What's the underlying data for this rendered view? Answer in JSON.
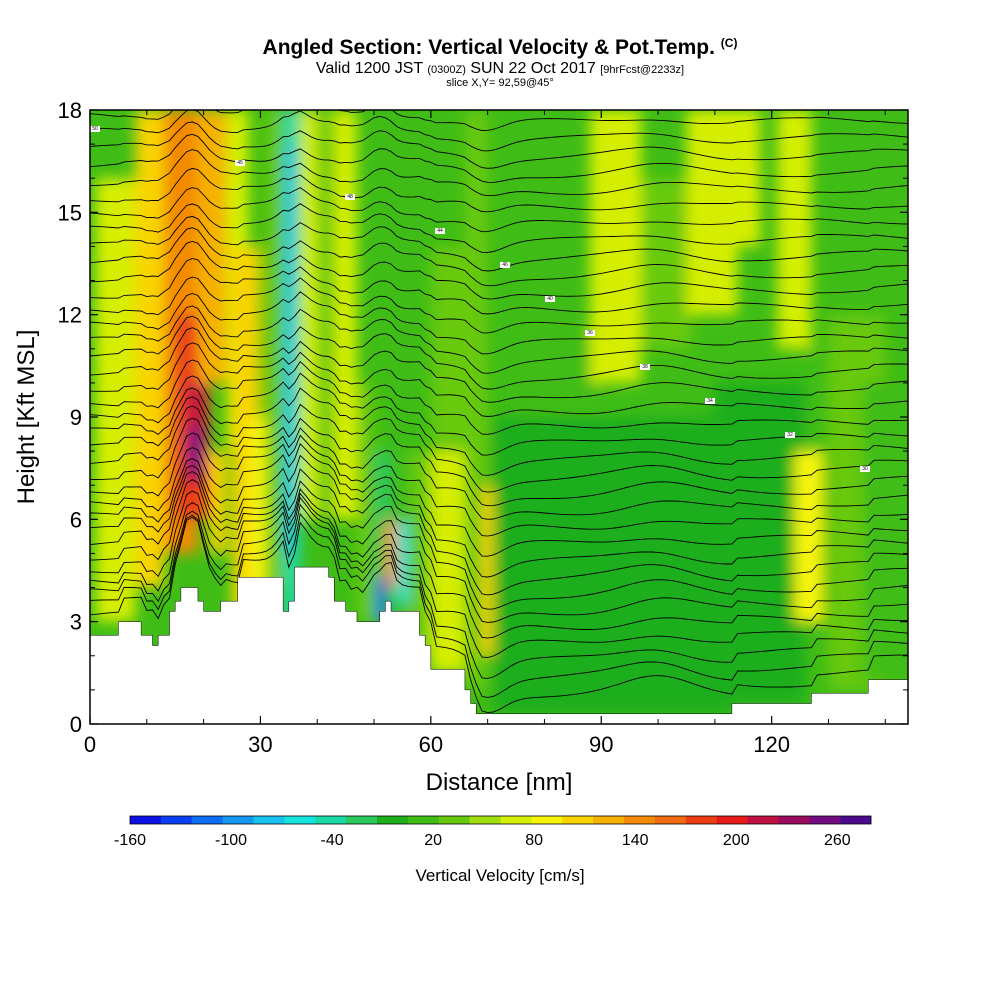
{
  "title": {
    "main": "Angled Section: Vertical Velocity & Pot.Temp.",
    "unit": "(C)",
    "valid_prefix": "Valid 1200 JST",
    "valid_utc": "(0300Z)",
    "valid_date": "SUN 22 Oct 2017",
    "forecast": "[9hrFcst@2233z]",
    "slice": "slice X,Y= 92,59@45°"
  },
  "chart_data": {
    "type": "heatmap",
    "xlabel": "Distance [nm]",
    "ylabel": "Height [Kft MSL]",
    "xlim": [
      0,
      144
    ],
    "ylim": [
      0,
      18
    ],
    "x_ticks": [
      0,
      30,
      60,
      90,
      120
    ],
    "y_ticks": [
      0,
      3,
      6,
      9,
      12,
      15,
      18
    ],
    "terrain_kft": [
      [
        0,
        2.6
      ],
      [
        3,
        2.6
      ],
      [
        5,
        3.0
      ],
      [
        8,
        3.0
      ],
      [
        9,
        2.6
      ],
      [
        10,
        2.6
      ],
      [
        11,
        2.3
      ],
      [
        12,
        2.6
      ],
      [
        13,
        2.6
      ],
      [
        14,
        3.3
      ],
      [
        15,
        3.6
      ],
      [
        16,
        4.0
      ],
      [
        18,
        4.0
      ],
      [
        19,
        3.6
      ],
      [
        20,
        3.3
      ],
      [
        22,
        3.3
      ],
      [
        23,
        3.6
      ],
      [
        25,
        3.6
      ],
      [
        26,
        4.3
      ],
      [
        33,
        4.3
      ],
      [
        34,
        3.3
      ],
      [
        35,
        3.6
      ],
      [
        36,
        4.6
      ],
      [
        40,
        4.6
      ],
      [
        42,
        4.3
      ],
      [
        43,
        3.6
      ],
      [
        45,
        3.3
      ],
      [
        47,
        3.0
      ],
      [
        50,
        3.0
      ],
      [
        51,
        3.3
      ],
      [
        52,
        3.6
      ],
      [
        53,
        3.3
      ],
      [
        57,
        3.3
      ],
      [
        58,
        2.6
      ],
      [
        59,
        2.3
      ],
      [
        60,
        1.6
      ],
      [
        65,
        1.6
      ],
      [
        66,
        1.0
      ],
      [
        67,
        0.6
      ],
      [
        68,
        0.3
      ],
      [
        80,
        0.3
      ],
      [
        90,
        0.3
      ],
      [
        100,
        0.3
      ],
      [
        110,
        0.3
      ],
      [
        113,
        0.6
      ],
      [
        120,
        0.6
      ],
      [
        125,
        0.6
      ],
      [
        127,
        0.9
      ],
      [
        136,
        0.9
      ],
      [
        137,
        1.3
      ],
      [
        144,
        1.3
      ]
    ],
    "velocity_cells": [
      {
        "x": [
          1,
          8
        ],
        "y": [
          3,
          16
        ],
        "value": 60
      },
      {
        "x": [
          8,
          13
        ],
        "y": [
          4,
          18
        ],
        "value": 110
      },
      {
        "x": [
          13,
          19
        ],
        "y": [
          5,
          18
        ],
        "value": 150
      },
      {
        "x": [
          15,
          21
        ],
        "y": [
          6,
          12
        ],
        "value": 180
      },
      {
        "x": [
          17,
          20
        ],
        "y": [
          7,
          10
        ],
        "value": 220
      },
      {
        "x": [
          17.5,
          19.5
        ],
        "y": [
          7.3,
          8.7
        ],
        "value": 270
      },
      {
        "x": [
          19,
          24
        ],
        "y": [
          10,
          18
        ],
        "value": 120
      },
      {
        "x": [
          24,
          28
        ],
        "y": [
          8,
          18
        ],
        "value": 70
      },
      {
        "x": [
          21,
          24
        ],
        "y": [
          5,
          8
        ],
        "value": 110
      },
      {
        "x": [
          25,
          30
        ],
        "y": [
          3,
          14
        ],
        "value": 100
      },
      {
        "x": [
          28,
          31
        ],
        "y": [
          4,
          9
        ],
        "value": 80
      },
      {
        "x": [
          31,
          34
        ],
        "y": [
          4,
          18
        ],
        "value": 40
      },
      {
        "x": [
          34,
          37
        ],
        "y": [
          3,
          18
        ],
        "value": -40
      },
      {
        "x": [
          34.5,
          36
        ],
        "y": [
          5,
          17
        ],
        "value": -70
      },
      {
        "x": [
          37,
          40
        ],
        "y": [
          6,
          18
        ],
        "value": 70
      },
      {
        "x": [
          40,
          43
        ],
        "y": [
          6,
          18
        ],
        "value": 30
      },
      {
        "x": [
          43,
          47
        ],
        "y": [
          6,
          18
        ],
        "value": 60
      },
      {
        "x": [
          47,
          50
        ],
        "y": [
          3,
          10
        ],
        "value": 40
      },
      {
        "x": [
          50,
          53
        ],
        "y": [
          3,
          8
        ],
        "value": -30
      },
      {
        "x": [
          50.5,
          52
        ],
        "y": [
          3,
          4.3
        ],
        "value": -130
      },
      {
        "x": [
          52,
          54
        ],
        "y": [
          4,
          6
        ],
        "value": 140
      },
      {
        "x": [
          54,
          56
        ],
        "y": [
          3.5,
          6
        ],
        "value": -60
      },
      {
        "x": [
          56,
          60
        ],
        "y": [
          2,
          8
        ],
        "value": 30
      },
      {
        "x": [
          60,
          66
        ],
        "y": [
          1.5,
          8
        ],
        "value": 60
      },
      {
        "x": [
          60,
          66
        ],
        "y": [
          8,
          14
        ],
        "value": 40
      },
      {
        "x": [
          66,
          70
        ],
        "y": [
          1,
          18
        ],
        "value": 40
      },
      {
        "x": [
          69,
          73
        ],
        "y": [
          2,
          7
        ],
        "value": 100
      },
      {
        "x": [
          71,
          80
        ],
        "y": [
          0.3,
          9
        ],
        "value": 0
      },
      {
        "x": [
          80,
          113
        ],
        "y": [
          0.3,
          9
        ],
        "value": 0
      },
      {
        "x": [
          110,
          126
        ],
        "y": [
          0.6,
          10
        ],
        "value": 0
      },
      {
        "x": [
          76,
          90
        ],
        "y": [
          9,
          11.5
        ],
        "value": 20
      },
      {
        "x": [
          88,
          97
        ],
        "y": [
          10,
          18
        ],
        "value": 60
      },
      {
        "x": [
          97,
          106
        ],
        "y": [
          11,
          16
        ],
        "value": 40
      },
      {
        "x": [
          105,
          114
        ],
        "y": [
          12,
          18
        ],
        "value": 70
      },
      {
        "x": [
          114,
          118
        ],
        "y": [
          14,
          18
        ],
        "value": 60
      },
      {
        "x": [
          121,
          127
        ],
        "y": [
          11,
          18
        ],
        "value": 70
      },
      {
        "x": [
          126,
          130
        ],
        "y": [
          2,
          11
        ],
        "value": 20
      },
      {
        "x": [
          130,
          140
        ],
        "y": [
          1,
          12
        ],
        "value": 40
      },
      {
        "x": [
          136,
          144
        ],
        "y": [
          1.3,
          10
        ],
        "value": 20
      },
      {
        "x": [
          124,
          129
        ],
        "y": [
          3,
          8
        ],
        "value": 80
      }
    ],
    "colorbar": {
      "label": "Vertical Velocity [cm/s]",
      "ticks": [
        "-160",
        "-100",
        "-40",
        "20",
        "80",
        "140",
        "200",
        "260"
      ],
      "levels": [
        -160,
        280
      ],
      "colors": [
        "#0b12e6",
        "#0a3ef2",
        "#0b6cf5",
        "#1598f3",
        "#17c1f0",
        "#15e3de",
        "#1ad9a6",
        "#2bc85c",
        "#1dae1a",
        "#3fbd16",
        "#67c90f",
        "#a0dd0c",
        "#d5ee05",
        "#f6f40a",
        "#f9d402",
        "#f6b002",
        "#f48a05",
        "#f06a12",
        "#ec3d12",
        "#e71a1a",
        "#c01042",
        "#9a0a5e",
        "#720a80",
        "#4b0a8e"
      ]
    },
    "isentrope_labels": [
      "50",
      "45",
      "48",
      "44",
      "46",
      "40",
      "36",
      "38",
      "34",
      "32",
      "30",
      "28",
      "26",
      "24",
      "22",
      "20",
      "18"
    ]
  },
  "colors": {
    "background": "#ffffff",
    "terrain": "#ffffff",
    "isentrope": "#000000"
  }
}
